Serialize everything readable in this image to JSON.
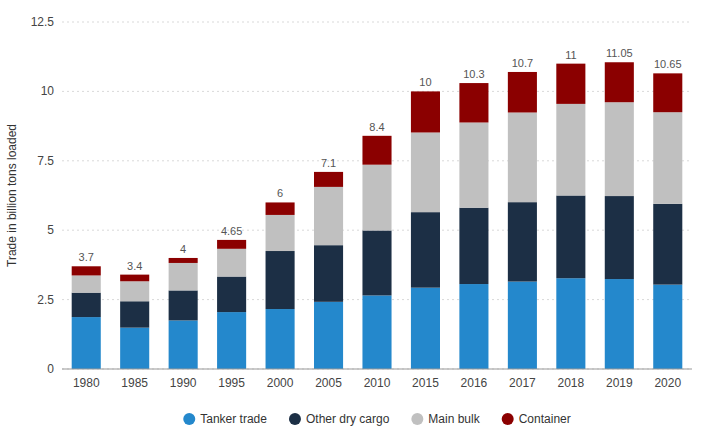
{
  "chart_data": {
    "type": "bar",
    "stacked": true,
    "y_label": "Trade in billion tons loaded",
    "categories": [
      "1980",
      "1985",
      "1990",
      "1995",
      "2000",
      "2005",
      "2010",
      "2015",
      "2016",
      "2017",
      "2018",
      "2019",
      "2020"
    ],
    "series": [
      {
        "name": "Tanker trade",
        "color": "#2488cc",
        "values": [
          1.87,
          1.49,
          1.75,
          2.05,
          2.16,
          2.42,
          2.65,
          2.93,
          3.06,
          3.15,
          3.27,
          3.24,
          3.04
        ]
      },
      {
        "name": "Other dry cargo",
        "color": "#1c2f45",
        "values": [
          0.88,
          0.95,
          1.08,
          1.28,
          2.09,
          2.04,
          2.34,
          2.72,
          2.75,
          2.86,
          2.98,
          2.99,
          2.91
        ]
      },
      {
        "name": "Main bulk",
        "color": "#c0c0c0",
        "values": [
          0.62,
          0.72,
          0.99,
          1.0,
          1.3,
          2.1,
          2.37,
          2.87,
          3.07,
          3.23,
          3.3,
          3.38,
          3.3
        ]
      },
      {
        "name": "Container",
        "color": "#8b0000",
        "values": [
          0.33,
          0.24,
          0.18,
          0.32,
          0.45,
          0.54,
          1.04,
          1.48,
          1.42,
          1.46,
          1.45,
          1.44,
          1.4
        ]
      }
    ],
    "totals": [
      3.7,
      3.4,
      4,
      4.65,
      6,
      7.1,
      8.4,
      10,
      10.3,
      10.7,
      11,
      11.05,
      10.65
    ],
    "ylim": [
      0,
      12.5
    ],
    "yticks": [
      0,
      2.5,
      5,
      7.5,
      10,
      12.5
    ],
    "grid": true,
    "legend": "bottom"
  }
}
